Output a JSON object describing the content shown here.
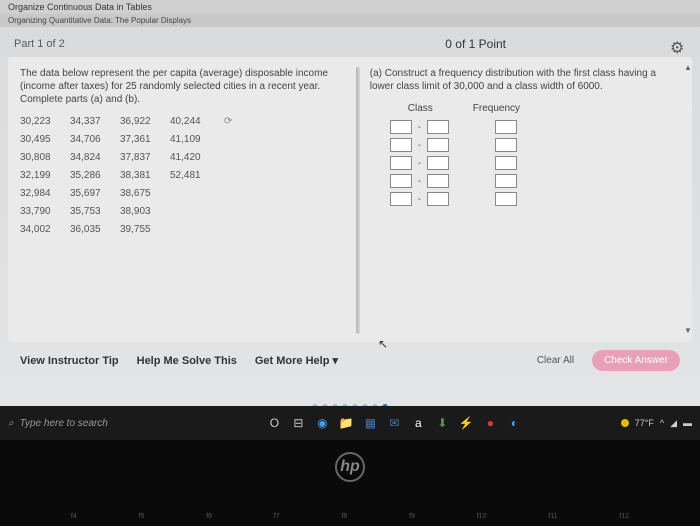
{
  "top": {
    "title1": "Organize Continuous Data in Tables",
    "title2": "Organizing Quantitative Data: The Popular Displays"
  },
  "header": {
    "part": "Part 1 of 2",
    "points": "0 of 1 Point"
  },
  "left": {
    "prompt": "The data below represent the per capita (average) disposable income (income after taxes) for 25 randomly selected cities in a recent year. Complete parts (a) and (b).",
    "rows": [
      [
        "30,223",
        "34,337",
        "36,922",
        "40,244"
      ],
      [
        "30,495",
        "34,706",
        "37,361",
        "41,109"
      ],
      [
        "30,808",
        "34,824",
        "37,837",
        "41,420"
      ],
      [
        "32,199",
        "35,286",
        "38,381",
        "52,481"
      ],
      [
        "32,984",
        "35,697",
        "38,675",
        ""
      ],
      [
        "33,790",
        "35,753",
        "38,903",
        ""
      ],
      [
        "34,002",
        "36,035",
        "39,755",
        ""
      ]
    ]
  },
  "right": {
    "part_a": "(a) Construct a frequency distribution with the first class having a lower class limit of 30,000 and a class width of 6000.",
    "col1": "Class",
    "col2": "Frequency"
  },
  "actions": {
    "tip": "View Instructor Tip",
    "help": "Help Me Solve This",
    "more": "Get More Help",
    "clear": "Clear All",
    "check": "Check Answer"
  },
  "dots": {
    "colors": [
      "#9bbce0",
      "#9bbce0",
      "#9bbce0",
      "#9bbce0",
      "#9bbce0",
      "#9bbce0",
      "#9bbce0",
      "#2a6fc9"
    ]
  },
  "taskbar": {
    "search": "Type here to search",
    "temp": "77°F",
    "center_colors": [
      "#ccc",
      "#ccc",
      "#4aa0e8",
      "#d4a020",
      "#3a7ab8",
      "#3a7ab8",
      "#fff",
      "#5a8a5a",
      "#ccc",
      "#d04030",
      "#4aa0e8"
    ],
    "center_glyphs": [
      "O",
      "⊟",
      "◉",
      "📁",
      "▦",
      "✉",
      "a",
      "⬇",
      "⚡",
      "●",
      "◐"
    ]
  },
  "hp": "hp"
}
